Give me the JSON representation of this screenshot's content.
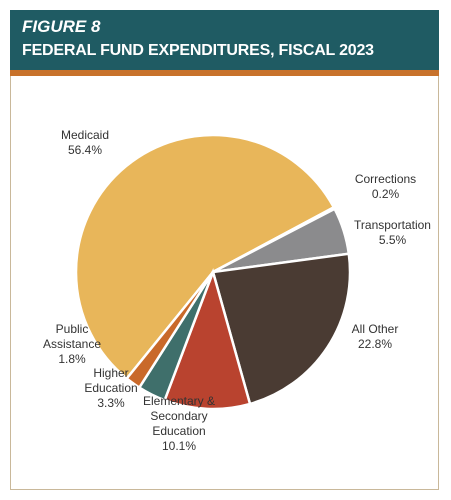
{
  "chart_data": {
    "type": "pie",
    "figure_label": "FIGURE 8",
    "title": "FEDERAL FUND EXPENDITURES, FISCAL 2023",
    "categories": [
      "Medicaid",
      "Corrections",
      "Transportation",
      "All Other",
      "Elementary & Secondary Education",
      "Higher Education",
      "Public Assistance"
    ],
    "values": [
      56.4,
      0.2,
      5.5,
      22.8,
      10.1,
      3.3,
      1.8
    ],
    "value_labels": [
      "56.4%",
      "0.2%",
      "5.5%",
      "22.8%",
      "10.1%",
      "3.3%",
      "1.8%"
    ],
    "colors": [
      "#e8b65a",
      "#efdcae",
      "#8b8b8d",
      "#4a3b33",
      "#b9432f",
      "#3f6f6b",
      "#c9692a"
    ]
  }
}
